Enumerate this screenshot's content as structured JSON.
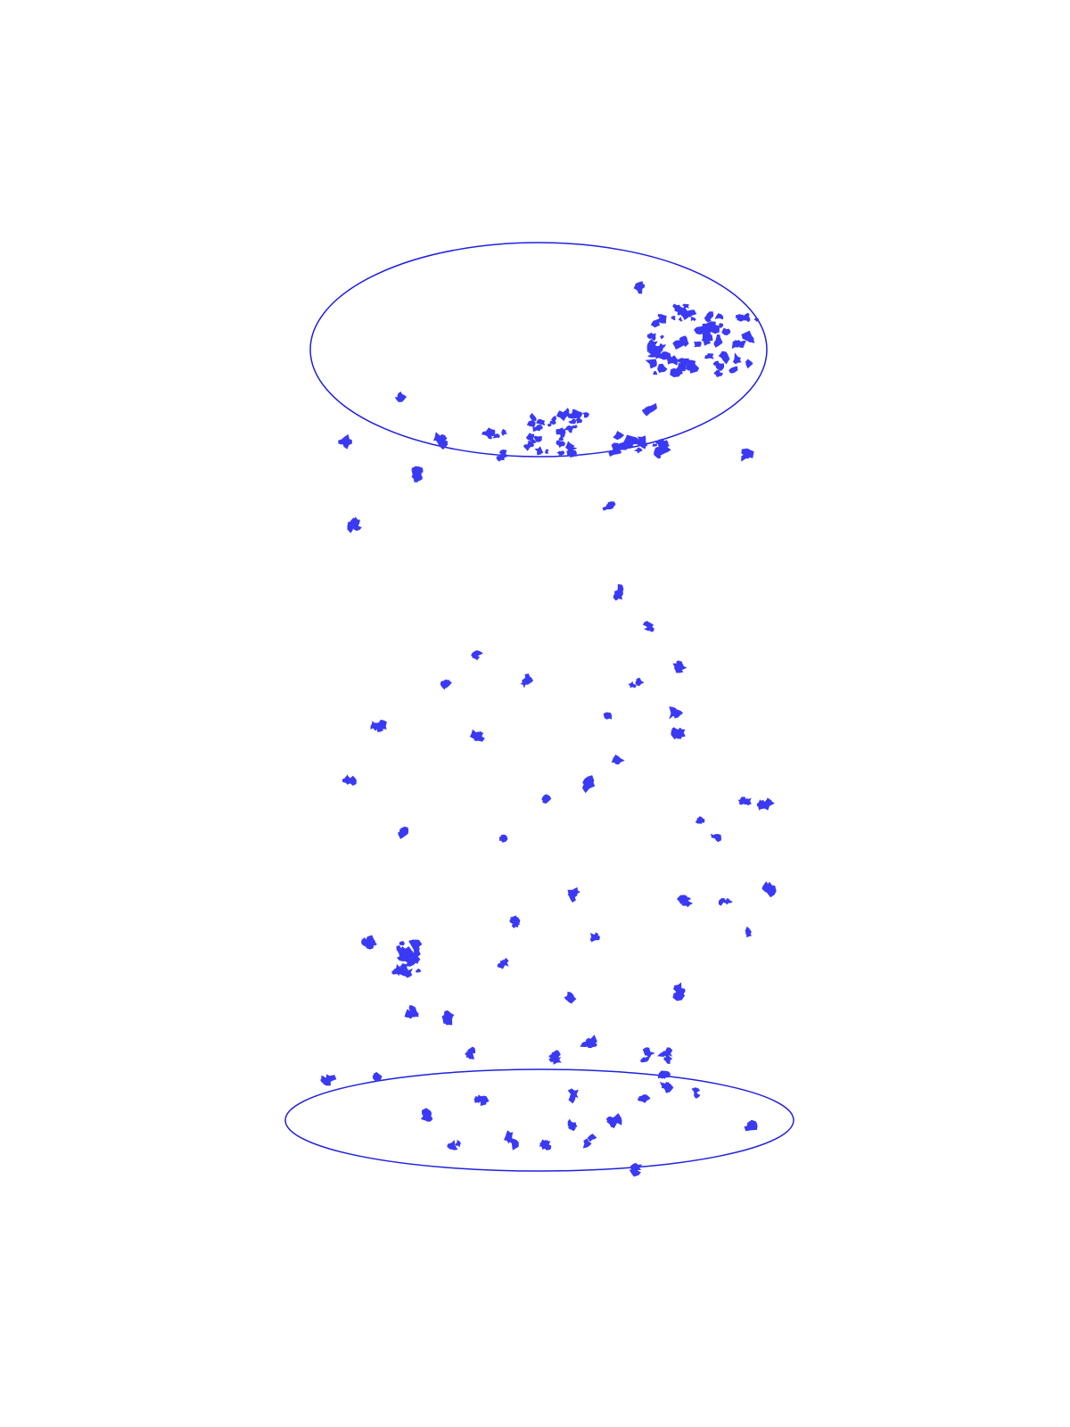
{
  "colors": {
    "background": "#ffffff",
    "outline": "#2020e0",
    "cluster": "#3a3af5"
  },
  "diagram": {
    "shapes": [
      {
        "kind": "top-disk-outline",
        "name": "top-ellipse"
      },
      {
        "kind": "bottom-disk-outline",
        "name": "bottom-ellipse"
      }
    ],
    "particle_groups": [
      {
        "name": "top-disk-large-cluster",
        "description_kind": "dense aggregate"
      },
      {
        "name": "top-disk-lower-cluster",
        "description_kind": "dense aggregate"
      },
      {
        "name": "falling-particles",
        "description_kind": "scattered small blobs"
      },
      {
        "name": "bottom-disk-particles",
        "description_kind": "scattered small blobs"
      }
    ]
  }
}
